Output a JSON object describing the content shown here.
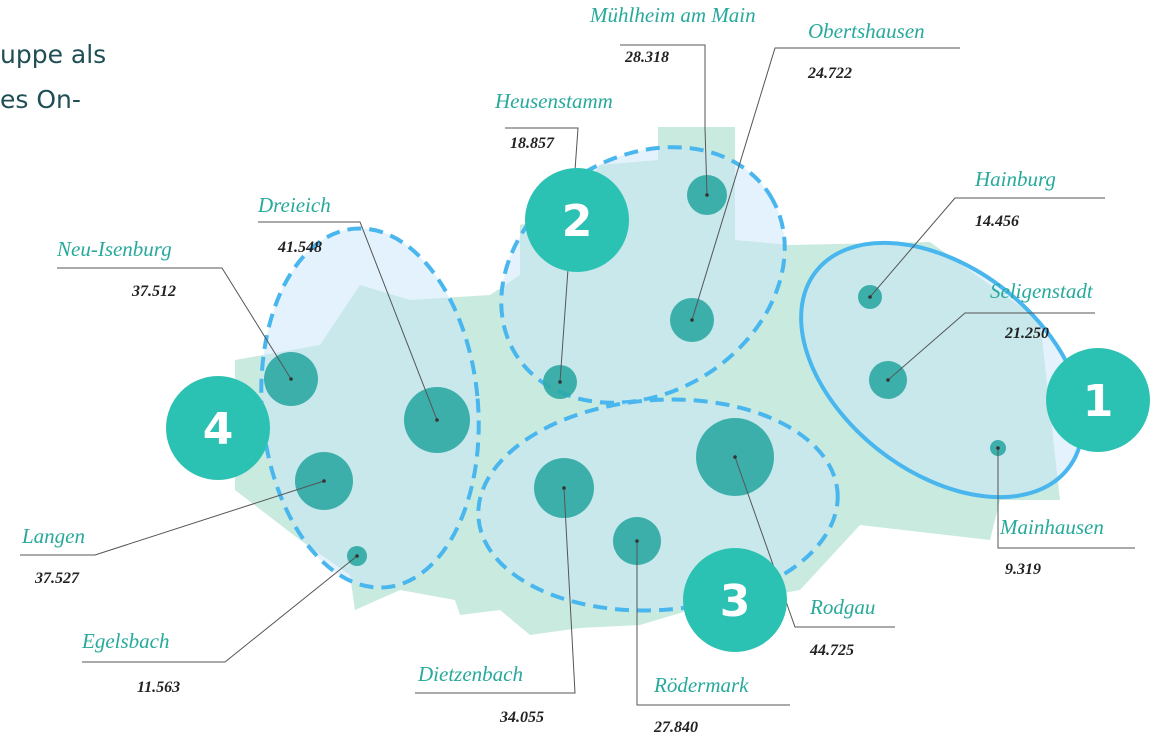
{
  "intro_text": [
    "uppe als",
    "es On-"
  ],
  "clusters": [
    "1",
    "2",
    "3",
    "4"
  ],
  "towns": [
    {
      "name": "Mühlheim am Main",
      "population": "28.318"
    },
    {
      "name": "Obertshausen",
      "population": "24.722"
    },
    {
      "name": "Heusenstamm",
      "population": "18.857"
    },
    {
      "name": "Hainburg",
      "population": "14.456"
    },
    {
      "name": "Seligenstadt",
      "population": "21.250"
    },
    {
      "name": "Mainhausen",
      "population": "9.319"
    },
    {
      "name": "Dreieich",
      "population": "41.548"
    },
    {
      "name": "Neu-Isenburg",
      "population": "37.512"
    },
    {
      "name": "Langen",
      "population": "37.527"
    },
    {
      "name": "Egelsbach",
      "population": "11.563"
    },
    {
      "name": "Dietzenbach",
      "population": "34.055"
    },
    {
      "name": "Rödermark",
      "population": "27.840"
    },
    {
      "name": "Rodgau",
      "population": "44.725"
    }
  ]
}
